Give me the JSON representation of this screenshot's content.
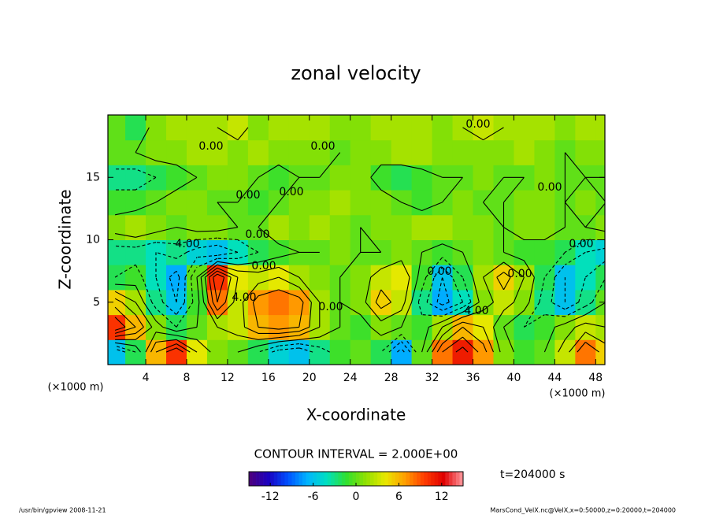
{
  "chart_data": {
    "type": "contour",
    "title": "zonal velocity",
    "xlabel": "X-coordinate",
    "ylabel": "Z-coordinate",
    "x_unit_labels": [
      "(×1000 m)",
      "(×1000 m)"
    ],
    "xlim": [
      0.3,
      48.9
    ],
    "ylim": [
      0,
      20
    ],
    "xticks": [
      4,
      8,
      12,
      16,
      20,
      24,
      28,
      32,
      36,
      40,
      44,
      48
    ],
    "yticks": [
      5,
      10,
      15
    ],
    "x": [
      1,
      3,
      5,
      7,
      9,
      11,
      13,
      15,
      17,
      19,
      21,
      23,
      25,
      27,
      29,
      31,
      33,
      35,
      37,
      39,
      41,
      43,
      45,
      47,
      49
    ],
    "z": [
      1,
      3,
      5,
      7,
      9,
      11,
      13,
      15,
      17,
      19
    ],
    "values": [
      [
        -6,
        -2,
        6,
        10,
        4,
        1,
        0,
        -2,
        -5,
        -6,
        -3,
        -1,
        0,
        -2,
        -7,
        0,
        8,
        11,
        7,
        1,
        -1,
        0,
        3,
        8,
        5
      ],
      [
        10,
        6,
        1,
        -2,
        0,
        2,
        3,
        6,
        7,
        6,
        2,
        0,
        -1,
        1,
        0,
        -1,
        2,
        6,
        4,
        0,
        -2,
        -1,
        1,
        3,
        2
      ],
      [
        5,
        2,
        -3,
        -6,
        -1,
        8,
        3,
        7,
        8,
        7,
        2,
        0,
        1,
        5,
        3,
        -3,
        -7,
        -4,
        1,
        3,
        1,
        -3,
        -6,
        -3,
        0
      ],
      [
        -2,
        -1,
        -4,
        -7,
        0,
        10,
        4,
        3,
        4,
        2,
        1,
        0,
        1,
        3,
        4,
        -1,
        -6,
        -2,
        2,
        5,
        2,
        -2,
        -6,
        -4,
        -2
      ],
      [
        -3,
        -3,
        -4,
        -3,
        -5,
        -6,
        -4,
        -2,
        -1,
        0,
        0,
        1,
        0,
        0,
        1,
        0,
        -1,
        0,
        1,
        0,
        -1,
        -1,
        -2,
        -4,
        -5
      ],
      [
        1,
        2,
        1,
        0,
        1,
        1,
        0,
        0,
        2,
        1,
        2,
        1,
        0,
        1,
        1,
        2,
        2,
        1,
        1,
        0,
        1,
        1,
        0,
        0,
        1
      ],
      [
        -1,
        -1,
        0,
        1,
        1,
        0,
        0,
        -1,
        0,
        1,
        1,
        2,
        1,
        1,
        0,
        -1,
        0,
        1,
        0,
        0,
        1,
        1,
        0,
        1,
        0
      ],
      [
        -3,
        -3,
        -2,
        -1,
        0,
        1,
        1,
        0,
        -1,
        0,
        0,
        1,
        1,
        -1,
        -2,
        -1,
        0,
        0,
        1,
        0,
        0,
        1,
        0,
        0,
        0
      ],
      [
        0,
        0,
        1,
        1,
        2,
        2,
        1,
        2,
        1,
        1,
        1,
        0,
        1,
        1,
        2,
        2,
        1,
        1,
        1,
        1,
        2,
        1,
        0,
        1,
        1
      ],
      [
        0,
        -2,
        1,
        2,
        2,
        2,
        3,
        1,
        2,
        2,
        2,
        1,
        1,
        2,
        2,
        2,
        1,
        2,
        3,
        2,
        2,
        2,
        1,
        2,
        2
      ]
    ],
    "contour_levels": [
      -8,
      -6,
      -4,
      -2,
      0,
      2,
      4,
      6,
      8,
      10
    ],
    "contour_labels": [
      "0.00",
      "0.00",
      "0.00",
      "0.00",
      "0.00",
      "0.00",
      "0.00",
      "4.00",
      "0.00",
      "0.00",
      "0.00",
      "0.00",
      "4.00",
      "0.00",
      "4.00"
    ],
    "colormap": [
      "#50007a",
      "#1a00c0",
      "#0050ff",
      "#00b4ff",
      "#00e0c0",
      "#30e030",
      "#90e000",
      "#e8e800",
      "#ffa000",
      "#ff3c00",
      "#e00000",
      "#ff9aa0"
    ],
    "clim": [
      -15,
      15
    ],
    "cticks": [
      -12,
      -6,
      0,
      6,
      12
    ],
    "contour_interval_label": "CONTOUR INTERVAL = 2.000E+00",
    "time_label": "t=204000 s",
    "footer_left": "/usr/bin/gpview   2008-11-21",
    "footer_right": "MarsCond_VelX.nc@VelX,x=0:50000,z=0:20000,t=204000"
  }
}
